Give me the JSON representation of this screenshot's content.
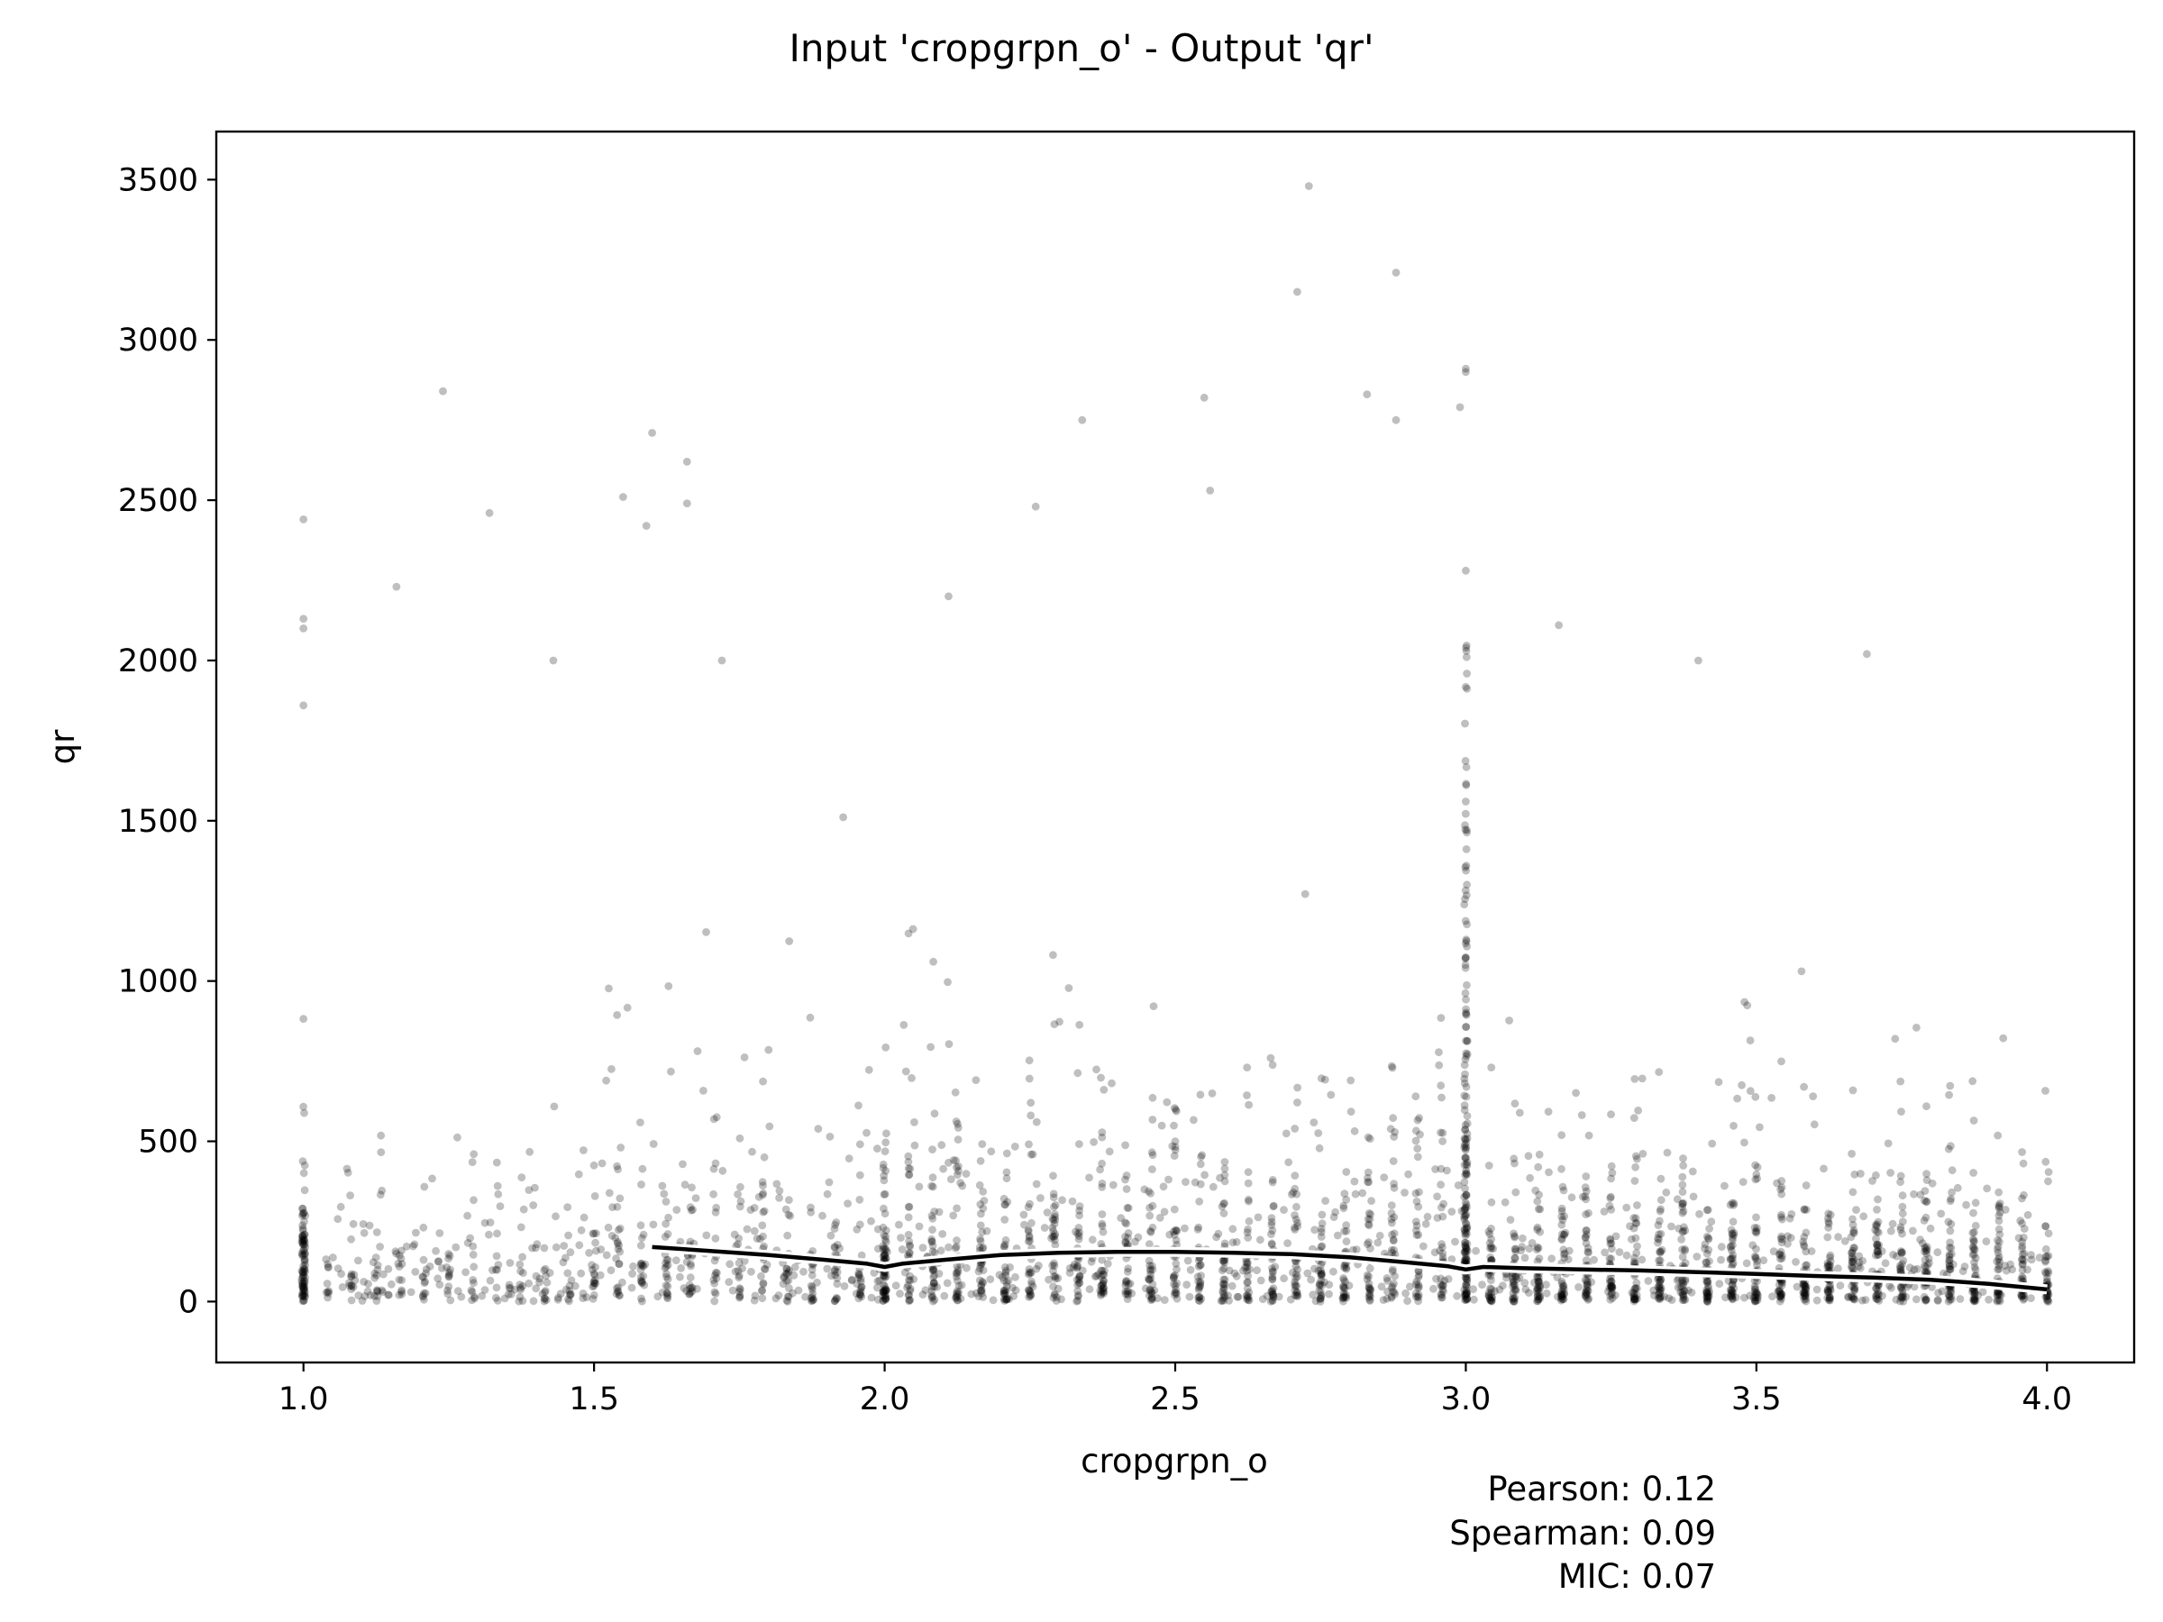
{
  "chart_data": {
    "type": "scatter",
    "title": "Input 'cropgrpn_o' - Output 'qr'",
    "xlabel": "cropgrpn_o",
    "ylabel": "qr",
    "xlim": [
      0.85,
      4.15
    ],
    "ylim": [
      -190,
      3650
    ],
    "xticks": [
      "1.0",
      "1.5",
      "2.0",
      "2.5",
      "3.0",
      "3.5",
      "4.0"
    ],
    "yticks": [
      "0",
      "500",
      "1000",
      "1500",
      "2000",
      "2500",
      "3000",
      "3500"
    ],
    "grid": false,
    "legend": "none",
    "point_color": "#000000",
    "point_alpha": 0.25,
    "trend_line": {
      "color": "#000000",
      "outline_color": "#ffffff",
      "x": [
        1.6,
        1.7,
        1.8,
        1.9,
        1.97,
        2.0,
        2.03,
        2.1,
        2.2,
        2.3,
        2.4,
        2.5,
        2.6,
        2.7,
        2.8,
        2.9,
        2.97,
        3.0,
        3.03,
        3.1,
        3.2,
        3.3,
        3.4,
        3.5,
        3.6,
        3.7,
        3.8,
        3.9,
        4.0
      ],
      "y": [
        170,
        158,
        145,
        130,
        118,
        108,
        118,
        130,
        145,
        152,
        155,
        155,
        152,
        148,
        138,
        122,
        110,
        100,
        108,
        104,
        100,
        97,
        92,
        86,
        80,
        75,
        68,
        55,
        38
      ]
    },
    "outliers": {
      "x": [
        1.0,
        1.0,
        1.0,
        1.0,
        1.24,
        1.16,
        1.32,
        1.43,
        1.6,
        1.55,
        1.59,
        1.66,
        1.66,
        1.72,
        2.11,
        2.26,
        2.34,
        2.55,
        2.56,
        2.71,
        2.73,
        2.83,
        2.88,
        2.88,
        3.0,
        3.0,
        2.99,
        3.0,
        3.16,
        3.69,
        3.4
      ],
      "y": [
        2440,
        2130,
        2100,
        1860,
        2840,
        2230,
        2460,
        2000,
        2710,
        2510,
        2420,
        2620,
        2490,
        2000,
        2200,
        2480,
        2750,
        2820,
        2530,
        3150,
        3480,
        2830,
        2750,
        3210,
        2910,
        2900,
        2790,
        2280,
        2110,
        2020,
        2000
      ]
    },
    "stats": {
      "pearson": "Pearson: 0.12",
      "spearman": "Spearman: 0.09",
      "mic": "MIC: 0.07"
    }
  }
}
